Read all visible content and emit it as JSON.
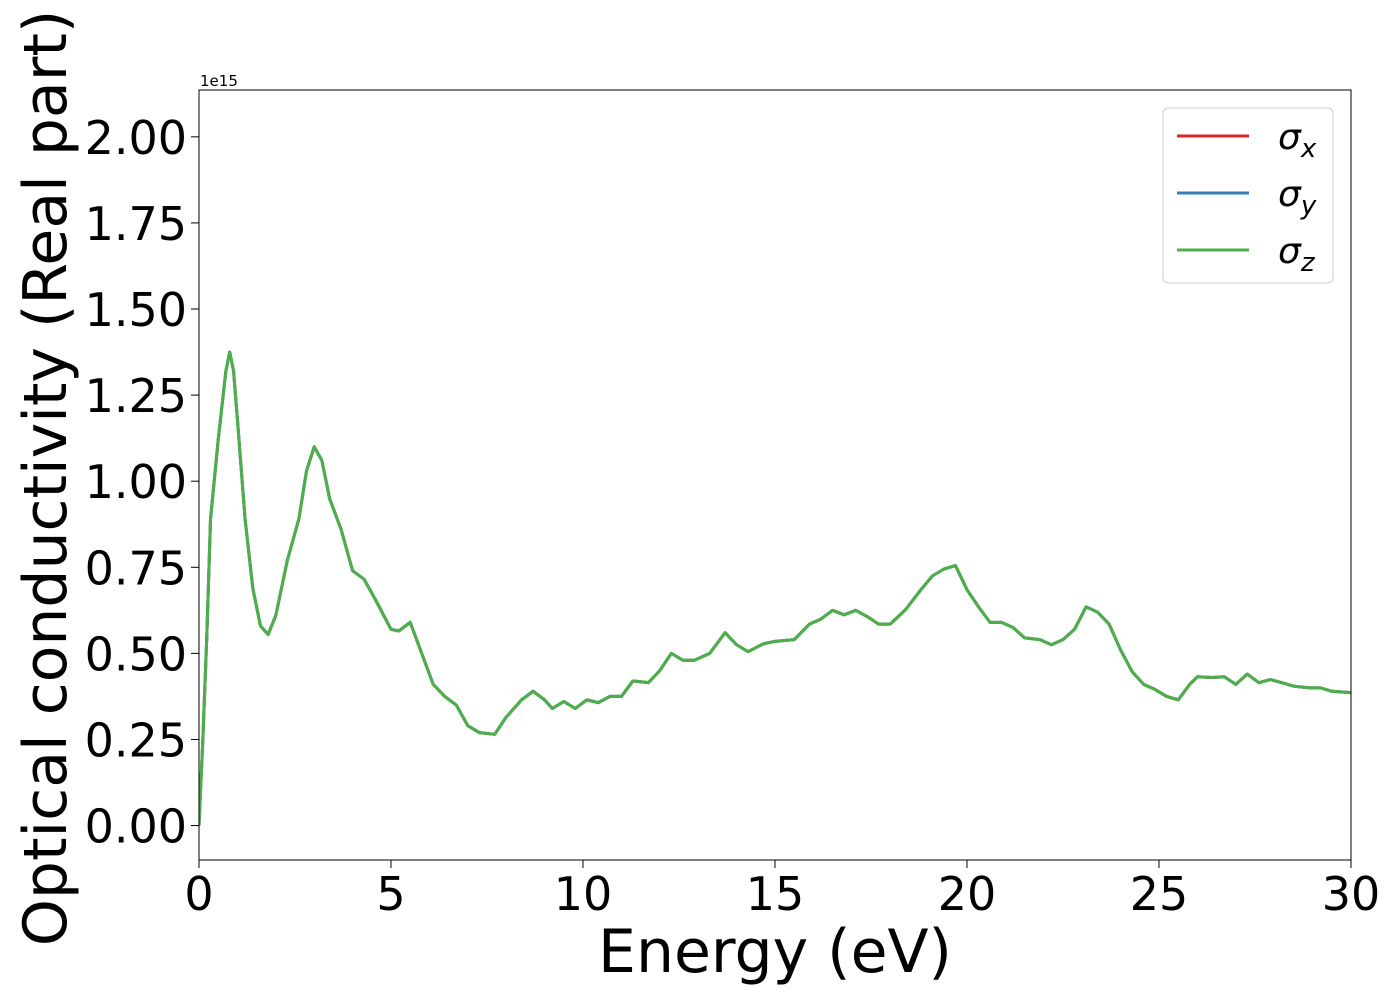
{
  "chart_data": {
    "type": "line",
    "xlabel": "Energy (eV)",
    "ylabel": "Optical conductivity (Real part)",
    "offset_text": "1e15",
    "x": [
      0,
      0.1,
      0.2,
      0.3,
      0.5,
      0.7,
      0.8,
      0.9,
      1.0,
      1.2,
      1.4,
      1.6,
      1.8,
      2.0,
      2.3,
      2.6,
      2.8,
      3.0,
      3.2,
      3.4,
      3.7,
      4.0,
      4.3,
      4.6,
      5.0,
      5.2,
      5.5,
      5.8,
      6.1,
      6.4,
      6.7,
      7.0,
      7.3,
      7.7,
      8.0,
      8.4,
      8.7,
      9.0,
      9.2,
      9.5,
      9.8,
      10.1,
      10.4,
      10.7,
      11.0,
      11.3,
      11.7,
      12.0,
      12.3,
      12.6,
      12.9,
      13.3,
      13.7,
      14.0,
      14.3,
      14.7,
      15.0,
      15.5,
      15.9,
      16.2,
      16.5,
      16.8,
      17.1,
      17.4,
      17.7,
      18.0,
      18.4,
      18.8,
      19.1,
      19.4,
      19.7,
      20.0,
      20.3,
      20.6,
      20.9,
      21.2,
      21.5,
      21.9,
      22.2,
      22.5,
      22.8,
      23.1,
      23.4,
      23.7,
      24.0,
      24.3,
      24.6,
      24.9,
      25.2,
      25.5,
      25.8,
      26.0,
      26.4,
      26.7,
      27.0,
      27.3,
      27.6,
      27.9,
      28.2,
      28.5,
      28.9,
      29.2,
      29.5,
      30.0
    ],
    "series": [
      {
        "name": "σx",
        "color": "#d62728",
        "values": [
          0,
          0.25,
          0.54,
          0.89,
          1.12,
          1.32,
          1.375,
          1.32,
          1.18,
          0.89,
          0.69,
          0.58,
          0.555,
          0.61,
          0.77,
          0.89,
          1.03,
          1.1,
          1.06,
          0.95,
          0.86,
          0.74,
          0.715,
          0.655,
          0.57,
          0.565,
          0.59,
          0.5,
          0.41,
          0.375,
          0.35,
          0.29,
          0.27,
          0.265,
          0.315,
          0.365,
          0.39,
          0.365,
          0.34,
          0.36,
          0.34,
          0.365,
          0.357,
          0.375,
          0.375,
          0.42,
          0.415,
          0.45,
          0.5,
          0.48,
          0.48,
          0.5,
          0.56,
          0.525,
          0.505,
          0.528,
          0.535,
          0.54,
          0.585,
          0.6,
          0.625,
          0.612,
          0.625,
          0.607,
          0.585,
          0.585,
          0.627,
          0.685,
          0.725,
          0.745,
          0.755,
          0.685,
          0.635,
          0.59,
          0.59,
          0.575,
          0.545,
          0.54,
          0.525,
          0.54,
          0.57,
          0.635,
          0.62,
          0.585,
          0.51,
          0.447,
          0.41,
          0.395,
          0.375,
          0.365,
          0.41,
          0.432,
          0.43,
          0.432,
          0.41,
          0.44,
          0.415,
          0.424,
          0.415,
          0.405,
          0.4,
          0.4,
          0.39,
          0.386
        ]
      },
      {
        "name": "σy",
        "color": "#377eb8",
        "values": [
          0,
          0.25,
          0.54,
          0.89,
          1.12,
          1.32,
          1.375,
          1.32,
          1.18,
          0.89,
          0.69,
          0.58,
          0.555,
          0.61,
          0.77,
          0.89,
          1.03,
          1.1,
          1.06,
          0.95,
          0.86,
          0.74,
          0.715,
          0.655,
          0.57,
          0.565,
          0.59,
          0.5,
          0.41,
          0.375,
          0.35,
          0.29,
          0.27,
          0.265,
          0.315,
          0.365,
          0.39,
          0.365,
          0.34,
          0.36,
          0.34,
          0.365,
          0.357,
          0.375,
          0.375,
          0.42,
          0.415,
          0.45,
          0.5,
          0.48,
          0.48,
          0.5,
          0.56,
          0.525,
          0.505,
          0.528,
          0.535,
          0.54,
          0.585,
          0.6,
          0.625,
          0.612,
          0.625,
          0.607,
          0.585,
          0.585,
          0.627,
          0.685,
          0.725,
          0.745,
          0.755,
          0.685,
          0.635,
          0.59,
          0.59,
          0.575,
          0.545,
          0.54,
          0.525,
          0.54,
          0.57,
          0.635,
          0.62,
          0.585,
          0.51,
          0.447,
          0.41,
          0.395,
          0.375,
          0.365,
          0.41,
          0.432,
          0.43,
          0.432,
          0.41,
          0.44,
          0.415,
          0.424,
          0.415,
          0.405,
          0.4,
          0.4,
          0.39,
          0.386
        ]
      },
      {
        "name": "σz",
        "color": "#4daf4a",
        "values": [
          0,
          0.25,
          0.54,
          0.89,
          1.12,
          1.32,
          1.375,
          1.32,
          1.18,
          0.89,
          0.69,
          0.58,
          0.555,
          0.61,
          0.77,
          0.89,
          1.03,
          1.1,
          1.06,
          0.95,
          0.86,
          0.74,
          0.715,
          0.655,
          0.57,
          0.565,
          0.59,
          0.5,
          0.41,
          0.375,
          0.35,
          0.29,
          0.27,
          0.265,
          0.315,
          0.365,
          0.39,
          0.365,
          0.34,
          0.36,
          0.34,
          0.365,
          0.357,
          0.375,
          0.375,
          0.42,
          0.415,
          0.45,
          0.5,
          0.48,
          0.48,
          0.5,
          0.56,
          0.525,
          0.505,
          0.528,
          0.535,
          0.54,
          0.585,
          0.6,
          0.625,
          0.612,
          0.625,
          0.607,
          0.585,
          0.585,
          0.627,
          0.685,
          0.725,
          0.745,
          0.755,
          0.685,
          0.635,
          0.59,
          0.59,
          0.575,
          0.545,
          0.54,
          0.525,
          0.54,
          0.57,
          0.635,
          0.62,
          0.585,
          0.51,
          0.447,
          0.41,
          0.395,
          0.375,
          0.365,
          0.41,
          0.432,
          0.43,
          0.432,
          0.41,
          0.44,
          0.415,
          0.424,
          0.415,
          0.405,
          0.4,
          0.4,
          0.39,
          0.386
        ]
      }
    ],
    "xlim": [
      0,
      30
    ],
    "xticks": [
      0,
      5,
      10,
      15,
      20,
      25,
      30
    ],
    "ylim": [
      -0.1,
      2.136
    ],
    "yticks": [
      {
        "value": 0,
        "label": "0.00"
      },
      {
        "value": 0.25,
        "label": "0.25"
      },
      {
        "value": 0.5,
        "label": "0.50"
      },
      {
        "value": 0.75,
        "label": "0.75"
      },
      {
        "value": 1,
        "label": "1.00"
      },
      {
        "value": 1.25,
        "label": "1.25"
      },
      {
        "value": 1.5,
        "label": "1.50"
      },
      {
        "value": 1.75,
        "label": "1.75"
      },
      {
        "value": 2,
        "label": "2.00"
      }
    ],
    "grid": false,
    "legend": "upper right"
  }
}
